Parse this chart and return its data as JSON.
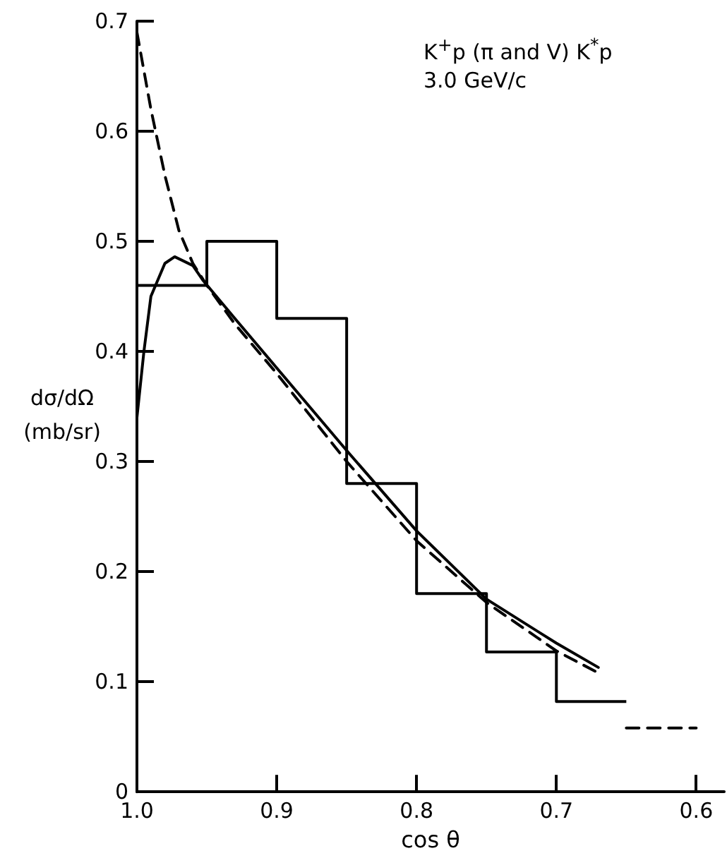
{
  "chart_data": {
    "type": "line",
    "title": "K$^{+}$p  (π and V) K$^{*}$p",
    "subtitle": "3.0 GeV/c",
    "xlabel": "cos θ",
    "ylabel": "dσ/dΩ (mb/sr)",
    "xlim": [
      1.0,
      0.58
    ],
    "xticks": [
      {
        "value": 1.0,
        "label": "1.0"
      },
      0.9,
      0.8,
      0.7,
      0.6
    ],
    "ylim": [
      0,
      0.7
    ],
    "yticks": [
      0,
      0.1,
      0.2,
      0.3,
      0.4,
      0.5,
      0.6,
      0.7
    ],
    "marker": "none",
    "series": [
      {
        "type": "histogram",
        "color": "#000000",
        "bins": [
          1.0,
          0.95,
          0.9,
          0.85,
          0.8,
          0.75,
          0.7,
          0.65
        ],
        "values": [
          0.46,
          0.5,
          0.43,
          0.28,
          0.18,
          0.127,
          0.082
        ]
      },
      {
        "type": "line",
        "color": "#000000",
        "line_style": "dashed",
        "x": [
          0.65,
          0.6
        ],
        "values": [
          0.058,
          0.058
        ]
      },
      {
        "type": "line",
        "color": "#000000",
        "line_style": "dashed",
        "x": [
          1.0,
          0.99,
          0.98,
          0.97,
          0.96,
          0.95,
          0.93,
          0.9,
          0.85,
          0.8,
          0.75,
          0.7,
          0.67
        ],
        "values": [
          0.69,
          0.62,
          0.56,
          0.51,
          0.48,
          0.46,
          0.425,
          0.38,
          0.3,
          0.228,
          0.172,
          0.128,
          0.108
        ]
      },
      {
        "type": "line",
        "color": "#000000",
        "line_style": "solid",
        "x": [
          1.0,
          0.995,
          0.99,
          0.98,
          0.973,
          0.96,
          0.953,
          0.93,
          0.9,
          0.85,
          0.8,
          0.75,
          0.7,
          0.67
        ],
        "values": [
          0.34,
          0.4,
          0.45,
          0.48,
          0.486,
          0.478,
          0.465,
          0.43,
          0.385,
          0.31,
          0.237,
          0.175,
          0.135,
          0.113
        ]
      }
    ]
  }
}
